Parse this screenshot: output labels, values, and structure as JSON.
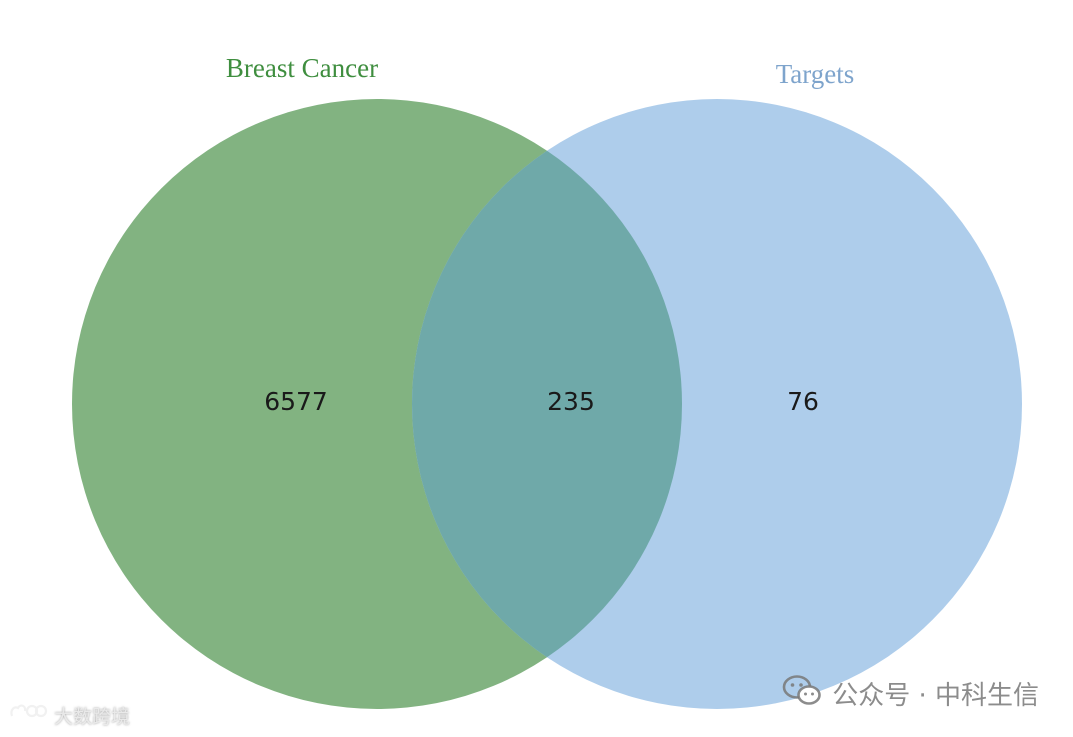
{
  "diagram": {
    "type": "venn",
    "sets": [
      {
        "name": "Breast Cancer",
        "color": "#82b381",
        "label_color": "#3f8e3f"
      },
      {
        "name": "Targets",
        "color": "#aecdeb",
        "label_color": "#7ea4cc"
      }
    ],
    "overlap_color": "#6fa9a9",
    "counts": {
      "only_a": "6577",
      "intersection": "235",
      "only_b": "76"
    }
  },
  "watermarks": {
    "right_text": "公众号 · 中科生信",
    "right_icon": "wechat-logo-icon",
    "left_text": "大数跨境",
    "left_icon": "brand-logo-icon"
  }
}
